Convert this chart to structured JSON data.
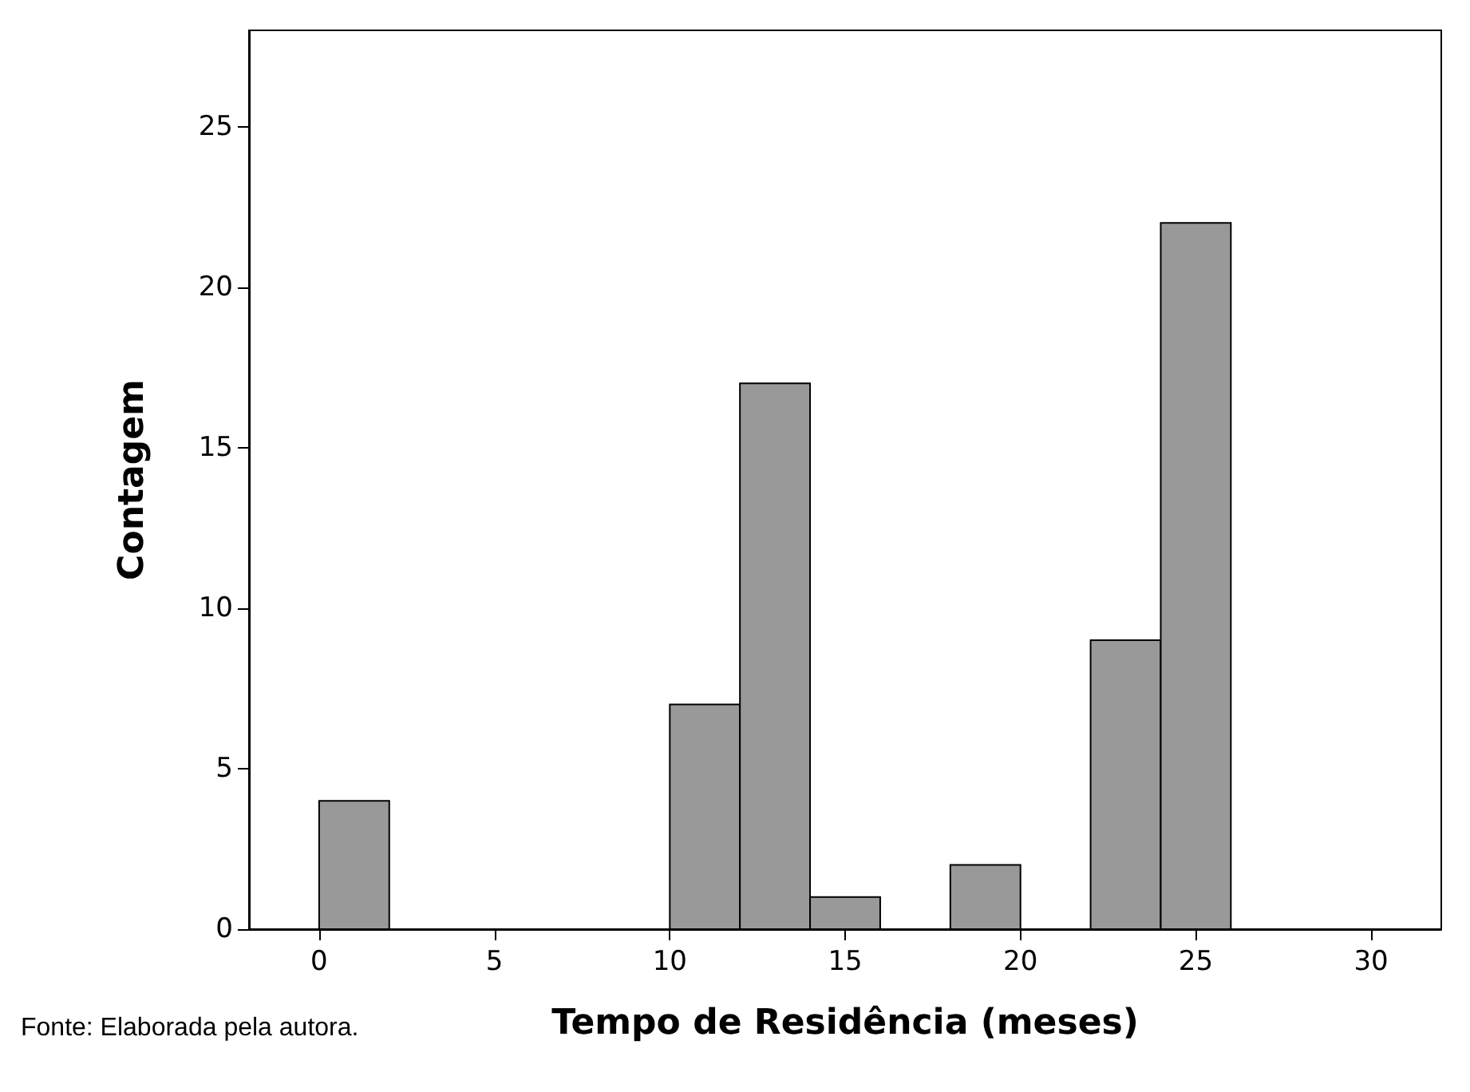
{
  "chart_data": {
    "type": "histogram",
    "xlabel": "Tempo de Residência (meses)",
    "ylabel": "Contagem",
    "bins": [
      0,
      2,
      4,
      6,
      8,
      10,
      12,
      14,
      16,
      18,
      20,
      22,
      24,
      26
    ],
    "values": [
      4,
      0,
      0,
      0,
      0,
      7,
      17,
      1,
      0,
      2,
      0,
      9,
      22
    ],
    "color": "#999999",
    "xlim": [
      -2,
      32
    ],
    "xticks": [
      0,
      5,
      10,
      15,
      20,
      25,
      30
    ],
    "ylim": [
      0,
      28
    ],
    "yticks": [
      0,
      5,
      10,
      15,
      20,
      25
    ],
    "grid": false,
    "annotations": [
      "Fonte: Elaborada pela autora."
    ]
  }
}
